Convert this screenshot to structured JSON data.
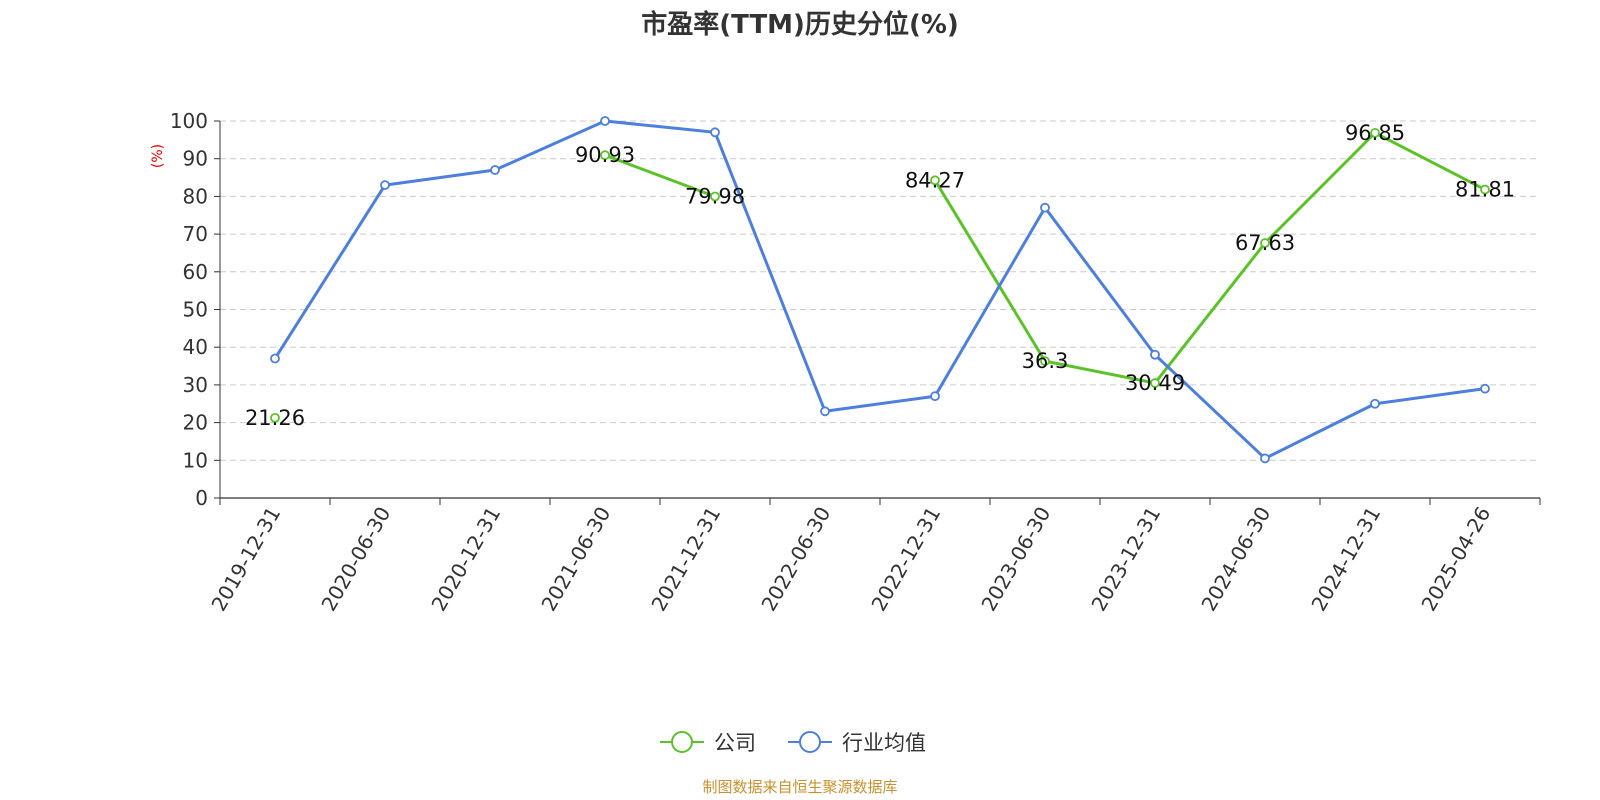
{
  "chart_data": {
    "type": "line",
    "title": "市盈率(TTM)历史分位(%)",
    "ylabel": "(%)",
    "ylim": [
      0,
      100
    ],
    "yticks": [
      0,
      10,
      20,
      30,
      40,
      50,
      60,
      70,
      80,
      90,
      100
    ],
    "grid": true,
    "legend_position": "bottom",
    "categories": [
      "2019-12-31",
      "2020-06-30",
      "2020-12-31",
      "2021-06-30",
      "2021-12-31",
      "2022-06-30",
      "2022-12-31",
      "2023-06-30",
      "2023-12-31",
      "2024-06-30",
      "2024-12-31",
      "2025-04-26"
    ],
    "series": [
      {
        "name": "公司",
        "color": "#5cc22a",
        "values": [
          21.26,
          null,
          null,
          90.93,
          79.98,
          null,
          84.27,
          36.3,
          30.49,
          67.63,
          96.85,
          81.81
        ],
        "labels": [
          "21.26",
          null,
          null,
          "90.93",
          "79.98",
          null,
          "84.27",
          "36.3",
          "30.49",
          "67.63",
          "96.85",
          "81.81"
        ]
      },
      {
        "name": "行业均值",
        "color": "#4d7fdc",
        "values": [
          37,
          83,
          87,
          100,
          97,
          23,
          27,
          77,
          38,
          10.5,
          25,
          29
        ],
        "labels": []
      }
    ],
    "source": "制图数据来自恒生聚源数据库"
  },
  "colors": {
    "title": "#333333",
    "unit_label": "#e60000",
    "source": "#c9922e",
    "grid": "#cccccc",
    "axis": "#333333"
  }
}
